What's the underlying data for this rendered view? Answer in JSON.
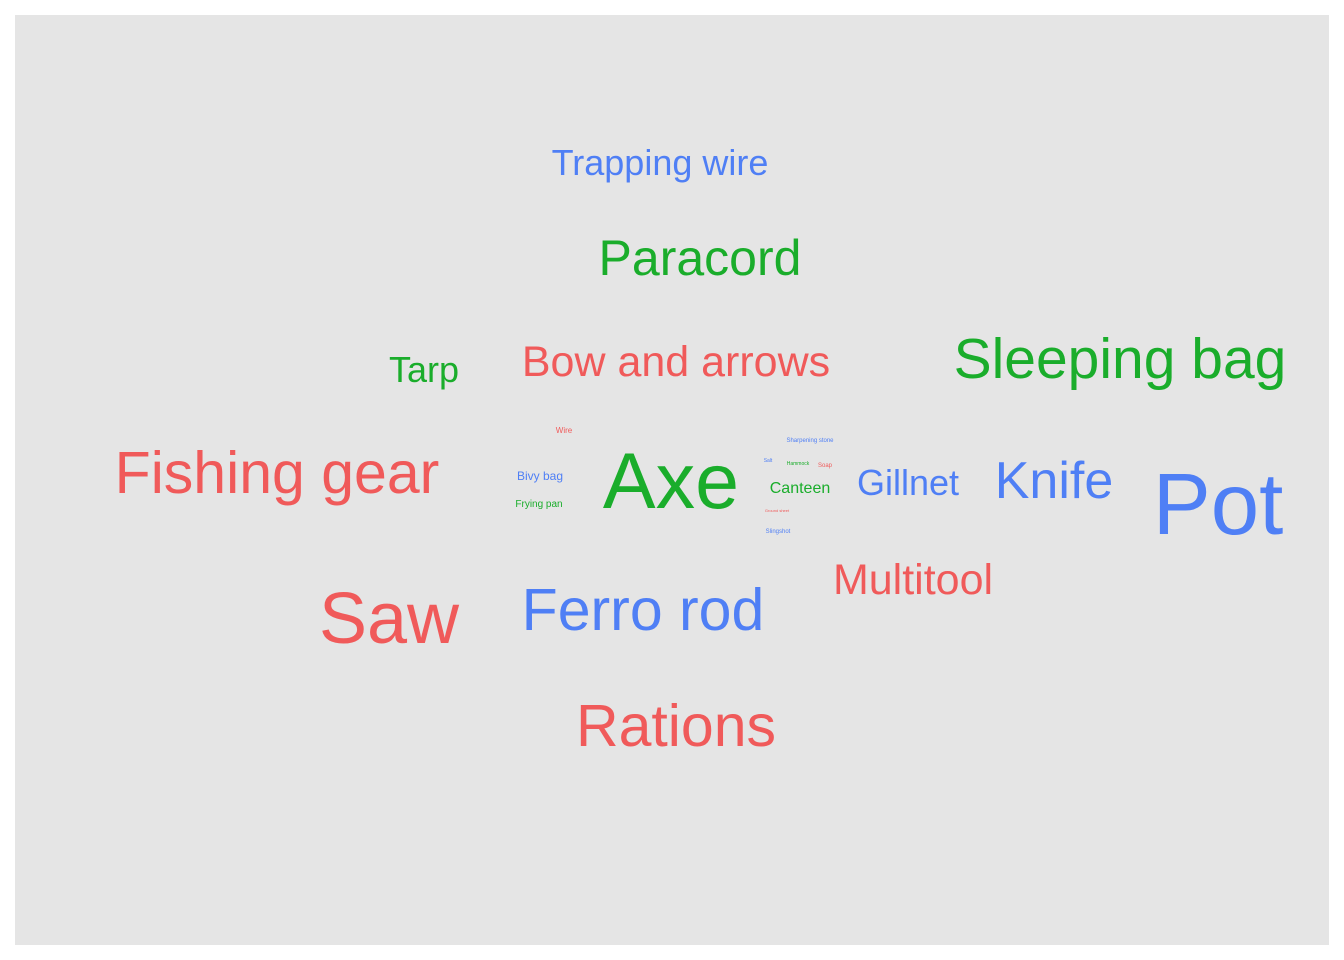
{
  "chart_data": {
    "type": "wordcloud",
    "colors": {
      "red": "#f05a5a",
      "green": "#1aad2b",
      "blue": "#4f7ff5",
      "background": "#e5e5e5"
    },
    "words": [
      {
        "text": "Trapping wire",
        "color": "blue"
      },
      {
        "text": "Paracord",
        "color": "green"
      },
      {
        "text": "Tarp",
        "color": "green"
      },
      {
        "text": "Bow and arrows",
        "color": "red"
      },
      {
        "text": "Sleeping bag",
        "color": "green"
      },
      {
        "text": "Fishing gear",
        "color": "red"
      },
      {
        "text": "Wire",
        "color": "red"
      },
      {
        "text": "Bivy bag",
        "color": "blue"
      },
      {
        "text": "Frying pan",
        "color": "green"
      },
      {
        "text": "Axe",
        "color": "green"
      },
      {
        "text": "Sharpening stone",
        "color": "blue"
      },
      {
        "text": "Salt",
        "color": "blue"
      },
      {
        "text": "Hammock",
        "color": "green"
      },
      {
        "text": "Soap",
        "color": "red"
      },
      {
        "text": "Canteen",
        "color": "green"
      },
      {
        "text": "Ground sheet",
        "color": "red"
      },
      {
        "text": "Slingshot",
        "color": "blue"
      },
      {
        "text": "Gillnet",
        "color": "blue"
      },
      {
        "text": "Knife",
        "color": "blue"
      },
      {
        "text": "Pot",
        "color": "blue"
      },
      {
        "text": "Multitool",
        "color": "red"
      },
      {
        "text": "Saw",
        "color": "red"
      },
      {
        "text": "Ferro rod",
        "color": "blue"
      },
      {
        "text": "Rations",
        "color": "red"
      }
    ]
  }
}
